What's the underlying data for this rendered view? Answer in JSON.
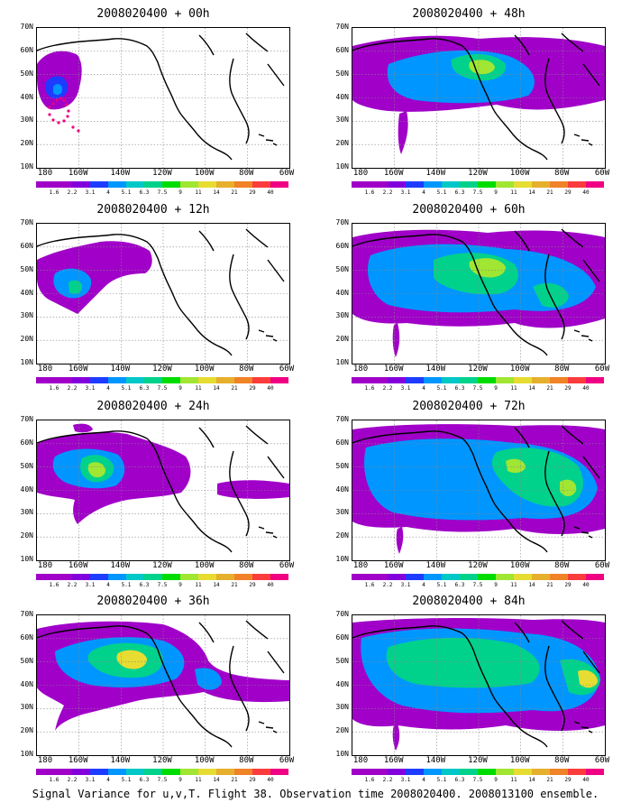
{
  "panels": [
    {
      "title": "2008020400 + 00h"
    },
    {
      "title": "2008020400 + 48h"
    },
    {
      "title": "2008020400 + 12h"
    },
    {
      "title": "2008020400 + 60h"
    },
    {
      "title": "2008020400 + 24h"
    },
    {
      "title": "2008020400 + 72h"
    },
    {
      "title": "2008020400 + 36h"
    },
    {
      "title": "2008020400 + 84h"
    }
  ],
  "lat_labels": [
    "70N",
    "60N",
    "50N",
    "40N",
    "30N",
    "20N",
    "10N"
  ],
  "lon_labels": [
    "180",
    "160W",
    "140W",
    "120W",
    "100W",
    "80W",
    "60W"
  ],
  "colorbar": {
    "labels": [
      "1.6",
      "2.2",
      "3.1",
      "4",
      "5.1",
      "6.3",
      "7.5",
      "9",
      "11",
      "14",
      "21",
      "29",
      "40"
    ],
    "colors": [
      "#a000c8",
      "#8200dc",
      "#1e3cff",
      "#0096ff",
      "#00c8c8",
      "#00d28c",
      "#00dc00",
      "#a0e632",
      "#e6dc32",
      "#e6af2d",
      "#f08228",
      "#fa3c3c",
      "#f00082"
    ]
  },
  "caption": "Signal Variance for u,v,T. Flight 38. Observation time 2008020400. 2008013100 ensemble."
}
